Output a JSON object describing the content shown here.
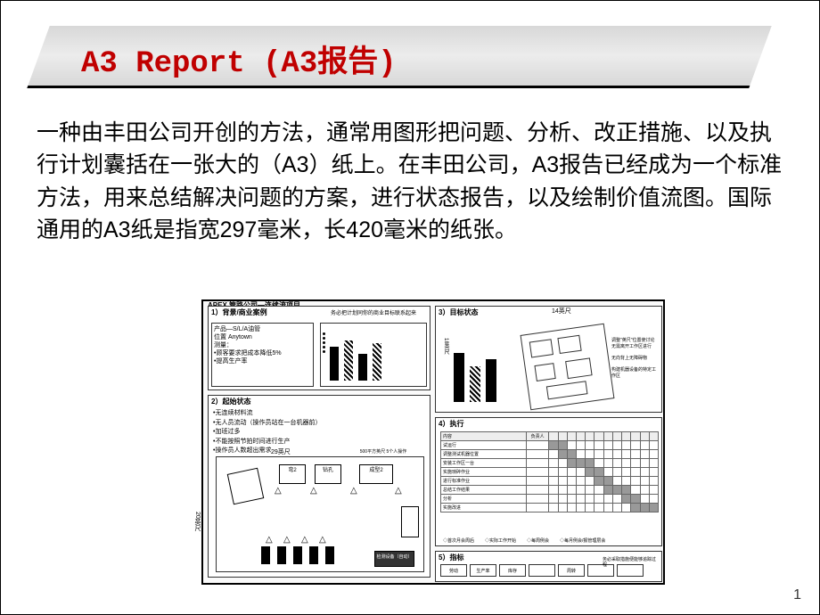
{
  "title": "A3 Report (A3报告)",
  "description": "一种由丰田公司开创的方法，通常用图形把问题、分析、改正措施、以及执行计划囊括在一张大的（A3）纸上。在丰田公司，A3报告已经成为一个标准方法，用来总结解决问题的方案，进行状态报告，以及绘制价值流图。国际通用的A3纸是指宽297毫米，长420毫米的纸张。",
  "page_number": "1",
  "a3": {
    "header": "APEX 管路公司—连续流项目",
    "subheader": "卡车燃油管路独立工作区",
    "p1": {
      "title": "1）背景/商业案例",
      "lines": [
        "产品—S/L/A油管",
        "位置 Anytown",
        "测量：",
        "•顾客要求把成本降低5%",
        "•提高生产率"
      ],
      "note": "务必把计划同你的商业目标联系起来",
      "bars": [
        38,
        45,
        30,
        42
      ]
    },
    "p2": {
      "title": "2）起始状态",
      "items": [
        "•无连续材料流",
        "•无人员流动（操作员站在一台机器前）",
        "•加班过多",
        "•不能按照节拍时间进行生产",
        "•操作员人数超出需求"
      ],
      "dim_h": "29英尺",
      "dim_v": "20英尺",
      "labels": {
        "c1": "弯2",
        "c2": "钻孔",
        "c3": "成型2",
        "auto": "检测设备（自动）"
      },
      "note": "500平方英尺 5个人操作"
    },
    "p3": {
      "title": "3）目标状态",
      "dim_h": "14英尺",
      "dim_v": "18英尺",
      "bars": [
        55,
        40,
        48
      ],
      "notes": [
        "调整\"英尺\"位置使讨论无需离开工作区进行",
        "无向背上无障碍物",
        "构建机器设备的特定工作区"
      ]
    },
    "p4": {
      "title": "4）执行",
      "cols": [
        "内容",
        "负责人",
        "",
        "",
        "",
        "",
        "",
        "",
        "",
        "",
        "",
        "",
        "",
        ""
      ],
      "rows": [
        {
          "t": "试运行",
          "p": "",
          "g": [
            1,
            1,
            0,
            0,
            0,
            0,
            0,
            0,
            0,
            0,
            0,
            0
          ]
        },
        {
          "t": "调整测试机器位置",
          "p": "",
          "g": [
            0,
            1,
            1,
            0,
            0,
            0,
            0,
            0,
            0,
            0,
            0,
            0
          ]
        },
        {
          "t": "安装工作区一台",
          "p": "",
          "g": [
            0,
            0,
            1,
            1,
            1,
            0,
            0,
            0,
            0,
            0,
            0,
            0
          ]
        },
        {
          "t": "实施琐碎作业",
          "p": "",
          "g": [
            0,
            0,
            0,
            0,
            1,
            1,
            0,
            0,
            0,
            0,
            0,
            0
          ]
        },
        {
          "t": "进行标准作业",
          "p": "",
          "g": [
            0,
            0,
            0,
            0,
            0,
            1,
            1,
            0,
            0,
            0,
            0,
            0
          ]
        },
        {
          "t": "总结工作结果",
          "p": "",
          "g": [
            0,
            0,
            0,
            0,
            0,
            0,
            1,
            1,
            1,
            0,
            0,
            0
          ]
        },
        {
          "t": "分析",
          "p": "",
          "g": [
            0,
            0,
            0,
            0,
            0,
            0,
            0,
            0,
            1,
            1,
            0,
            0
          ]
        },
        {
          "t": "实施改进",
          "p": "",
          "g": [
            0,
            0,
            0,
            0,
            0,
            0,
            0,
            0,
            0,
            1,
            1,
            1
          ]
        }
      ],
      "footer": [
        "◇首次月会周后",
        "◇实际工作开始",
        "◇每周例会",
        "◇每月例会/报管理层会"
      ]
    },
    "p5": {
      "title": "5）指标",
      "cells": [
        "劳动",
        "生产率",
        "库存",
        "",
        "周转",
        "",
        ""
      ],
      "note": "务必采取措施便能够追踪过程"
    }
  },
  "colors": {
    "title": "#c00000",
    "bar_bg": "#d8d8d8",
    "border": "#000000"
  }
}
